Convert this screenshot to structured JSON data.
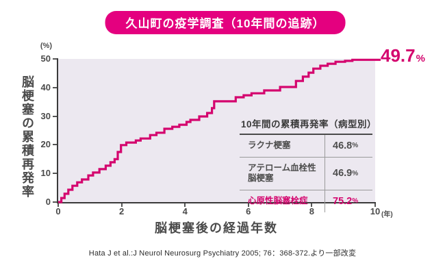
{
  "banner": {
    "title": "久山町の疫学調査（10年間の追跡）"
  },
  "colors": {
    "banner": "#e4007f",
    "curve": "#d4056e",
    "plot_bg": "#ece8f0",
    "axis": "#3a3a3a"
  },
  "chart_data": {
    "type": "line",
    "subtype": "kaplan-meier-step",
    "title": "久山町の疫学調査（10年間の追跡）",
    "xlabel": "脳梗塞後の経過年数",
    "ylabel": "脳梗塞の累積再発率",
    "y_unit": "(%)",
    "x_unit": "(年)",
    "xlim": [
      0,
      10
    ],
    "ylim": [
      0,
      50
    ],
    "x_ticks": [
      0,
      2,
      4,
      6,
      8,
      10
    ],
    "y_ticks": [
      0,
      10,
      20,
      30,
      40,
      50
    ],
    "grid": "off",
    "end_label": "49.7",
    "end_label_unit": "%",
    "series_name": "脳梗塞の累積再発率",
    "steps": [
      [
        0,
        0
      ],
      [
        0.1,
        1.4
      ],
      [
        0.2,
        2.9
      ],
      [
        0.32,
        4.3
      ],
      [
        0.45,
        5.7
      ],
      [
        0.6,
        6.9
      ],
      [
        0.75,
        7.9
      ],
      [
        0.95,
        9.3
      ],
      [
        1.1,
        10.3
      ],
      [
        1.3,
        11.5
      ],
      [
        1.5,
        12.7
      ],
      [
        1.65,
        13.9
      ],
      [
        1.78,
        15.0
      ],
      [
        1.88,
        17.5
      ],
      [
        1.98,
        19.9
      ],
      [
        2.15,
        20.8
      ],
      [
        2.45,
        21.5
      ],
      [
        2.6,
        22.2
      ],
      [
        2.9,
        23.4
      ],
      [
        3.1,
        24.2
      ],
      [
        3.35,
        25.6
      ],
      [
        3.6,
        26.3
      ],
      [
        3.82,
        27.0
      ],
      [
        4.05,
        28.0
      ],
      [
        4.17,
        28.7
      ],
      [
        4.45,
        29.9
      ],
      [
        4.7,
        31.1
      ],
      [
        4.85,
        32.8
      ],
      [
        4.92,
        35.2
      ],
      [
        5.6,
        36.6
      ],
      [
        5.85,
        37.3
      ],
      [
        6.1,
        38.0
      ],
      [
        6.5,
        39.0
      ],
      [
        7.0,
        40.2
      ],
      [
        7.5,
        42.3
      ],
      [
        7.72,
        43.8
      ],
      [
        7.9,
        45.2
      ],
      [
        8.05,
        46.6
      ],
      [
        8.27,
        47.6
      ],
      [
        8.5,
        48.3
      ],
      [
        8.75,
        49.0
      ],
      [
        9.05,
        49.3
      ],
      [
        9.28,
        49.7
      ],
      [
        10,
        49.7
      ]
    ]
  },
  "inset_table": {
    "title": "10年間の累積再発率（病型別）",
    "rows": [
      {
        "label": "ラクナ梗塞",
        "value": "46.8",
        "unit": "%",
        "highlight": false
      },
      {
        "label": "アテローム血栓性脳梗塞",
        "value": "46.9",
        "unit": "%",
        "highlight": false
      },
      {
        "label": "心原性脳塞栓症",
        "value": "75.2",
        "unit": "%",
        "highlight": true
      }
    ]
  },
  "citation": "Hata J et al.:J Neurol Neurosurg Psychiatry 2005; 76：368-372.より一部改変"
}
